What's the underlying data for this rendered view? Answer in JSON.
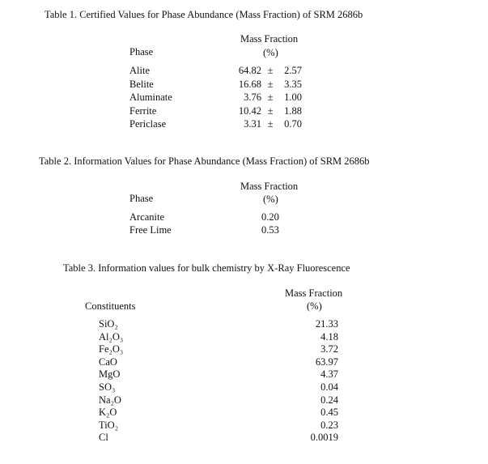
{
  "table1": {
    "title": "Table 1.  Certified Values for Phase Abundance (Mass Fraction) of SRM 2686b",
    "col_phase": "Phase",
    "col_mass": "Mass Fraction",
    "col_unit": "(%)",
    "rows": [
      {
        "phase": "Alite",
        "value": "64.82",
        "pm": "±",
        "unc": "2.57"
      },
      {
        "phase": "Belite",
        "value": "16.68",
        "pm": "±",
        "unc": "3.35"
      },
      {
        "phase": "Aluminate",
        "value": "3.76",
        "pm": "±",
        "unc": "1.00"
      },
      {
        "phase": "Ferrite",
        "value": "10.42",
        "pm": "±",
        "unc": "1.88"
      },
      {
        "phase": "Periclase",
        "value": "3.31",
        "pm": "±",
        "unc": "0.70"
      }
    ]
  },
  "table2": {
    "title": "Table 2.  Information Values for Phase Abundance (Mass Fraction) of SRM 2686b",
    "col_phase": "Phase",
    "col_mass": "Mass Fraction",
    "col_unit": "(%)",
    "rows": [
      {
        "phase": "Arcanite",
        "value": "0.20"
      },
      {
        "phase": "Free Lime",
        "value": "0.53"
      }
    ]
  },
  "table3": {
    "title": "Table 3.  Information values for bulk chemistry by X-Ray Fluorescence",
    "col_const": "Constituents",
    "col_mass": "Mass Fraction",
    "col_unit": "(%)",
    "rows": [
      {
        "name": "SiO₂",
        "value": "21.33"
      },
      {
        "name": "Al₂O₃",
        "value": "4.18"
      },
      {
        "name": "Fe₂O₃",
        "value": "3.72"
      },
      {
        "name": "CaO",
        "value": "63.97"
      },
      {
        "name": "MgO",
        "value": "4.37"
      },
      {
        "name": "SO₃",
        "value": "0.04"
      },
      {
        "name": "Na₂O",
        "value": "0.24"
      },
      {
        "name": "K₂O",
        "value": "0.45"
      },
      {
        "name": "TiO₂",
        "value": "0.23"
      },
      {
        "name": "Cl",
        "value": "0.0019"
      }
    ]
  }
}
